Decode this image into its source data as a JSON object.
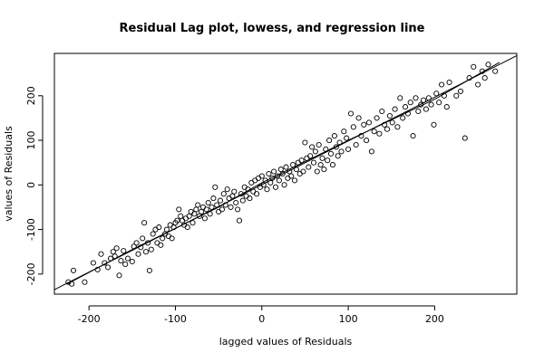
{
  "chart_data": {
    "type": "scatter",
    "title": "Residual Lag plot, lowess, and regression line",
    "xlabel": "lagged values of Residuals",
    "ylabel": "values of Residuals",
    "xlim": [
      -240,
      295
    ],
    "ylim": [
      -245,
      295
    ],
    "xticks": [
      -200,
      -100,
      0,
      100,
      200
    ],
    "yticks": [
      -200,
      -100,
      0,
      100,
      200
    ],
    "grid": false,
    "regression_line": [
      [
        -240,
        -235
      ],
      [
        295,
        290
      ]
    ],
    "lowess_line": [
      [
        -225,
        -222
      ],
      [
        -150,
        -145
      ],
      [
        -50,
        -50
      ],
      [
        0,
        5
      ],
      [
        100,
        100
      ],
      [
        200,
        192
      ],
      [
        275,
        275
      ]
    ],
    "points": [
      [
        -224,
        -218
      ],
      [
        -220,
        -222
      ],
      [
        -218,
        -192
      ],
      [
        -205,
        -218
      ],
      [
        -195,
        -175
      ],
      [
        -190,
        -190
      ],
      [
        -186,
        -155
      ],
      [
        -182,
        -175
      ],
      [
        -178,
        -185
      ],
      [
        -175,
        -165
      ],
      [
        -172,
        -150
      ],
      [
        -170,
        -160
      ],
      [
        -168,
        -142
      ],
      [
        -165,
        -203
      ],
      [
        -163,
        -170
      ],
      [
        -160,
        -148
      ],
      [
        -158,
        -178
      ],
      [
        -155,
        -165
      ],
      [
        -150,
        -172
      ],
      [
        -148,
        -138
      ],
      [
        -145,
        -130
      ],
      [
        -143,
        -155
      ],
      [
        -140,
        -140
      ],
      [
        -138,
        -120
      ],
      [
        -136,
        -85
      ],
      [
        -134,
        -150
      ],
      [
        -132,
        -130
      ],
      [
        -130,
        -192
      ],
      [
        -128,
        -145
      ],
      [
        -126,
        -110
      ],
      [
        -123,
        -100
      ],
      [
        -121,
        -130
      ],
      [
        -119,
        -95
      ],
      [
        -117,
        -135
      ],
      [
        -115,
        -120
      ],
      [
        -112,
        -110
      ],
      [
        -110,
        -100
      ],
      [
        -108,
        -115
      ],
      [
        -106,
        -90
      ],
      [
        -104,
        -120
      ],
      [
        -102,
        -95
      ],
      [
        -100,
        -85
      ],
      [
        -98,
        -80
      ],
      [
        -96,
        -55
      ],
      [
        -94,
        -70
      ],
      [
        -92,
        -80
      ],
      [
        -90,
        -90
      ],
      [
        -88,
        -75
      ],
      [
        -86,
        -95
      ],
      [
        -84,
        -70
      ],
      [
        -82,
        -60
      ],
      [
        -80,
        -85
      ],
      [
        -78,
        -65
      ],
      [
        -76,
        -55
      ],
      [
        -74,
        -45
      ],
      [
        -72,
        -70
      ],
      [
        -70,
        -60
      ],
      [
        -68,
        -50
      ],
      [
        -66,
        -75
      ],
      [
        -64,
        -55
      ],
      [
        -62,
        -40
      ],
      [
        -60,
        -65
      ],
      [
        -58,
        -50
      ],
      [
        -56,
        -30
      ],
      [
        -54,
        -5
      ],
      [
        -52,
        -45
      ],
      [
        -50,
        -60
      ],
      [
        -48,
        -35
      ],
      [
        -46,
        -55
      ],
      [
        -44,
        -20
      ],
      [
        -42,
        -45
      ],
      [
        -40,
        -10
      ],
      [
        -38,
        -30
      ],
      [
        -36,
        -50
      ],
      [
        -34,
        -25
      ],
      [
        -32,
        -15
      ],
      [
        -30,
        -40
      ],
      [
        -28,
        -55
      ],
      [
        -26,
        -80
      ],
      [
        -24,
        -20
      ],
      [
        -22,
        -35
      ],
      [
        -20,
        -5
      ],
      [
        -18,
        -25
      ],
      [
        -16,
        -10
      ],
      [
        -14,
        -30
      ],
      [
        -12,
        5
      ],
      [
        -10,
        -15
      ],
      [
        -8,
        10
      ],
      [
        -6,
        -20
      ],
      [
        -4,
        15
      ],
      [
        -2,
        -5
      ],
      [
        0,
        20
      ],
      [
        2,
        0
      ],
      [
        4,
        10
      ],
      [
        6,
        -10
      ],
      [
        8,
        25
      ],
      [
        10,
        5
      ],
      [
        12,
        15
      ],
      [
        14,
        30
      ],
      [
        16,
        -5
      ],
      [
        18,
        20
      ],
      [
        20,
        10
      ],
      [
        22,
        35
      ],
      [
        24,
        25
      ],
      [
        26,
        0
      ],
      [
        28,
        40
      ],
      [
        30,
        15
      ],
      [
        32,
        30
      ],
      [
        34,
        20
      ],
      [
        36,
        45
      ],
      [
        38,
        10
      ],
      [
        40,
        35
      ],
      [
        42,
        50
      ],
      [
        44,
        25
      ],
      [
        46,
        55
      ],
      [
        48,
        30
      ],
      [
        50,
        95
      ],
      [
        52,
        60
      ],
      [
        54,
        40
      ],
      [
        56,
        65
      ],
      [
        58,
        85
      ],
      [
        60,
        50
      ],
      [
        62,
        75
      ],
      [
        64,
        30
      ],
      [
        66,
        90
      ],
      [
        68,
        45
      ],
      [
        70,
        60
      ],
      [
        72,
        35
      ],
      [
        74,
        80
      ],
      [
        76,
        55
      ],
      [
        78,
        100
      ],
      [
        80,
        70
      ],
      [
        82,
        45
      ],
      [
        84,
        110
      ],
      [
        86,
        85
      ],
      [
        88,
        65
      ],
      [
        90,
        95
      ],
      [
        92,
        75
      ],
      [
        95,
        120
      ],
      [
        98,
        105
      ],
      [
        100,
        80
      ],
      [
        103,
        160
      ],
      [
        106,
        130
      ],
      [
        109,
        90
      ],
      [
        112,
        150
      ],
      [
        115,
        110
      ],
      [
        118,
        135
      ],
      [
        121,
        100
      ],
      [
        124,
        140
      ],
      [
        127,
        75
      ],
      [
        130,
        120
      ],
      [
        133,
        150
      ],
      [
        136,
        115
      ],
      [
        139,
        165
      ],
      [
        142,
        135
      ],
      [
        145,
        125
      ],
      [
        148,
        155
      ],
      [
        151,
        140
      ],
      [
        154,
        170
      ],
      [
        157,
        130
      ],
      [
        160,
        195
      ],
      [
        163,
        150
      ],
      [
        166,
        175
      ],
      [
        169,
        160
      ],
      [
        172,
        185
      ],
      [
        175,
        110
      ],
      [
        178,
        195
      ],
      [
        181,
        165
      ],
      [
        184,
        180
      ],
      [
        187,
        190
      ],
      [
        190,
        170
      ],
      [
        193,
        195
      ],
      [
        196,
        180
      ],
      [
        199,
        135
      ],
      [
        202,
        205
      ],
      [
        205,
        185
      ],
      [
        208,
        225
      ],
      [
        211,
        200
      ],
      [
        214,
        175
      ],
      [
        217,
        230
      ],
      [
        225,
        200
      ],
      [
        230,
        210
      ],
      [
        235,
        105
      ],
      [
        240,
        240
      ],
      [
        245,
        265
      ],
      [
        250,
        225
      ],
      [
        255,
        255
      ],
      [
        258,
        240
      ],
      [
        262,
        270
      ],
      [
        270,
        255
      ]
    ]
  }
}
